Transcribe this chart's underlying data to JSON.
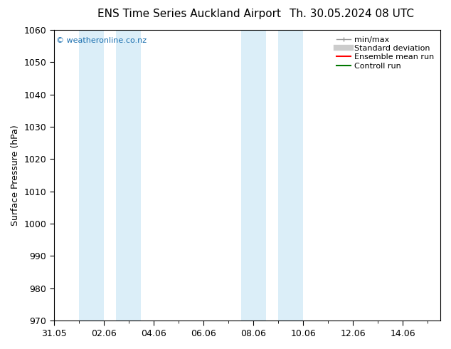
{
  "title_left": "ENS Time Series Auckland Airport",
  "title_right": "Th. 30.05.2024 08 UTC",
  "ylabel": "Surface Pressure (hPa)",
  "ylim": [
    970,
    1060
  ],
  "yticks": [
    970,
    980,
    990,
    1000,
    1010,
    1020,
    1030,
    1040,
    1050,
    1060
  ],
  "xlim": [
    0,
    15.5
  ],
  "xlabel_ticks": [
    0,
    2,
    4,
    6,
    8,
    10,
    12,
    14
  ],
  "xlabel_labels": [
    "31.05",
    "02.06",
    "04.06",
    "06.06",
    "08.06",
    "10.06",
    "12.06",
    "14.06"
  ],
  "shaded_bands": [
    {
      "x_start": 1.0,
      "x_end": 2.0
    },
    {
      "x_start": 2.5,
      "x_end": 3.5
    },
    {
      "x_start": 7.5,
      "x_end": 8.5
    },
    {
      "x_start": 9.0,
      "x_end": 10.0
    }
  ],
  "band_color": "#dbeef8",
  "background_color": "#ffffff",
  "watermark": "© weatheronline.co.nz",
  "watermark_color": "#1a6faf",
  "legend_entries": [
    "min/max",
    "Standard deviation",
    "Ensemble mean run",
    "Controll run"
  ],
  "title_fontsize": 11,
  "tick_fontsize": 9,
  "ylabel_fontsize": 9,
  "legend_fontsize": 8
}
